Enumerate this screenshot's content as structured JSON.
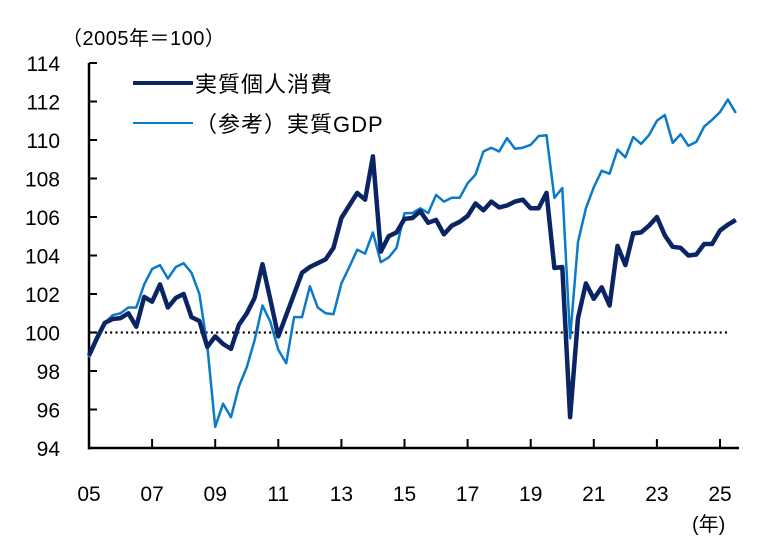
{
  "header": {
    "unit_label": "（2005年＝100）",
    "x_unit_label": "(年)"
  },
  "legend": {
    "items": [
      {
        "label": "実質個人消費",
        "color": "#0b2463",
        "width": 4.5
      },
      {
        "label": "（参考）実質GDP",
        "color": "#0b7ac8",
        "width": 2.5
      }
    ]
  },
  "colors": {
    "consumption": "#0b2463",
    "gdp": "#0b7ac8",
    "axis": "#000000",
    "reference_line": "#000000"
  },
  "chart_data": {
    "type": "line",
    "title": "",
    "xlabel": "(年)",
    "ylabel": "（2005年＝100）",
    "ylim": [
      94,
      114
    ],
    "yticks": [
      94,
      96,
      98,
      100,
      102,
      104,
      106,
      108,
      110,
      112,
      114
    ],
    "xticks": [
      "05",
      "07",
      "09",
      "11",
      "13",
      "15",
      "17",
      "19",
      "21",
      "23",
      "25"
    ],
    "x_range": [
      2005.0,
      2025.5
    ],
    "frequency": "quarterly",
    "start": "2005Q1",
    "end": "2025Q2",
    "reference_line": {
      "y": 100,
      "style": "dotted"
    },
    "grid": false,
    "legend_position": "top-left",
    "series": [
      {
        "name": "実質個人消費",
        "values": [
          98.8,
          99.7,
          100.5,
          100.7,
          100.75,
          101.0,
          100.3,
          101.85,
          101.6,
          102.5,
          101.3,
          101.8,
          102.0,
          100.8,
          100.6,
          99.25,
          99.8,
          99.4,
          99.15,
          100.4,
          101.0,
          101.8,
          103.55,
          101.7,
          99.8,
          100.9,
          102.0,
          103.1,
          103.4,
          103.6,
          103.8,
          104.4,
          105.95,
          106.6,
          107.25,
          106.9,
          109.15,
          104.2,
          105.0,
          105.2,
          105.9,
          105.95,
          106.3,
          105.7,
          105.85,
          105.1,
          105.55,
          105.75,
          106.05,
          106.7,
          106.35,
          106.8,
          106.5,
          106.6,
          106.8,
          106.9,
          106.45,
          106.45,
          107.25,
          103.35,
          103.4,
          95.6,
          100.75,
          102.55,
          101.75,
          102.35,
          101.4,
          104.5,
          103.5,
          105.15,
          105.2,
          105.55,
          106.0,
          105.05,
          104.45,
          104.4,
          104.0,
          104.05,
          104.6,
          104.6,
          105.3,
          105.6,
          105.85
        ]
      },
      {
        "name": "（参考）実質GDP",
        "values": [
          98.7,
          99.6,
          100.5,
          100.9,
          101.0,
          101.3,
          101.3,
          102.5,
          103.3,
          103.5,
          102.8,
          103.4,
          103.6,
          103.1,
          102.0,
          99.3,
          95.1,
          96.3,
          95.6,
          97.2,
          98.2,
          99.6,
          101.4,
          100.55,
          99.1,
          98.4,
          100.8,
          100.8,
          102.4,
          101.3,
          101.0,
          100.95,
          102.55,
          103.4,
          104.3,
          104.1,
          105.2,
          103.65,
          103.9,
          104.4,
          106.2,
          106.2,
          106.45,
          106.2,
          107.15,
          106.8,
          107.0,
          107.0,
          107.75,
          108.2,
          109.4,
          109.6,
          109.4,
          110.1,
          109.55,
          109.6,
          109.75,
          110.2,
          110.25,
          107.0,
          107.5,
          99.7,
          104.7,
          106.45,
          107.55,
          108.4,
          108.25,
          109.5,
          109.1,
          110.15,
          109.8,
          110.25,
          111.0,
          111.3,
          109.85,
          110.3,
          109.7,
          109.9,
          110.7,
          111.05,
          111.45,
          112.1,
          111.4
        ]
      }
    ]
  }
}
